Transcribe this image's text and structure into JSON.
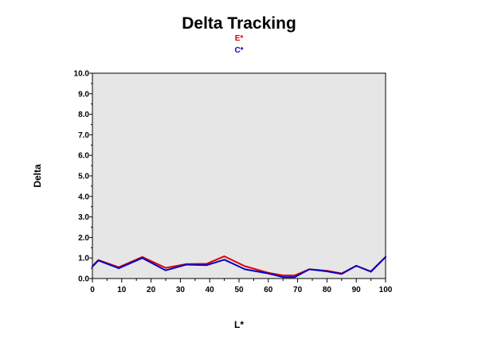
{
  "chart_data": {
    "type": "line",
    "title": "Delta Tracking",
    "xlabel": "L*",
    "ylabel": "Delta",
    "xlim": [
      0,
      100
    ],
    "ylim": [
      0,
      10
    ],
    "grid": false,
    "legend_position": "top-center",
    "x_ticks": [
      "0",
      "10",
      "20",
      "30",
      "40",
      "50",
      "60",
      "70",
      "80",
      "90",
      "100"
    ],
    "y_ticks": [
      "0.0",
      "1.0",
      "2.0",
      "3.0",
      "4.0",
      "5.0",
      "6.0",
      "7.0",
      "8.0",
      "9.0",
      "10.0"
    ],
    "plot_background": "#e6e6e6",
    "series": [
      {
        "name": "E*",
        "color": "#dd0000",
        "x": [
          0,
          2,
          9,
          17,
          25,
          32,
          39,
          45,
          52,
          60,
          65,
          69,
          74,
          80,
          85,
          90,
          95,
          100
        ],
        "y": [
          0.6,
          0.9,
          0.55,
          1.05,
          0.52,
          0.7,
          0.72,
          1.08,
          0.6,
          0.28,
          0.15,
          0.15,
          0.45,
          0.38,
          0.25,
          0.62,
          0.35,
          1.05
        ]
      },
      {
        "name": "C*",
        "color": "#0000cc",
        "x": [
          0,
          2,
          9,
          17,
          25,
          32,
          39,
          45,
          52,
          60,
          65,
          69,
          74,
          80,
          85,
          90,
          95,
          100
        ],
        "y": [
          0.58,
          0.88,
          0.5,
          1.0,
          0.4,
          0.68,
          0.65,
          0.92,
          0.45,
          0.25,
          0.07,
          0.07,
          0.45,
          0.35,
          0.22,
          0.62,
          0.33,
          1.05
        ]
      }
    ]
  }
}
